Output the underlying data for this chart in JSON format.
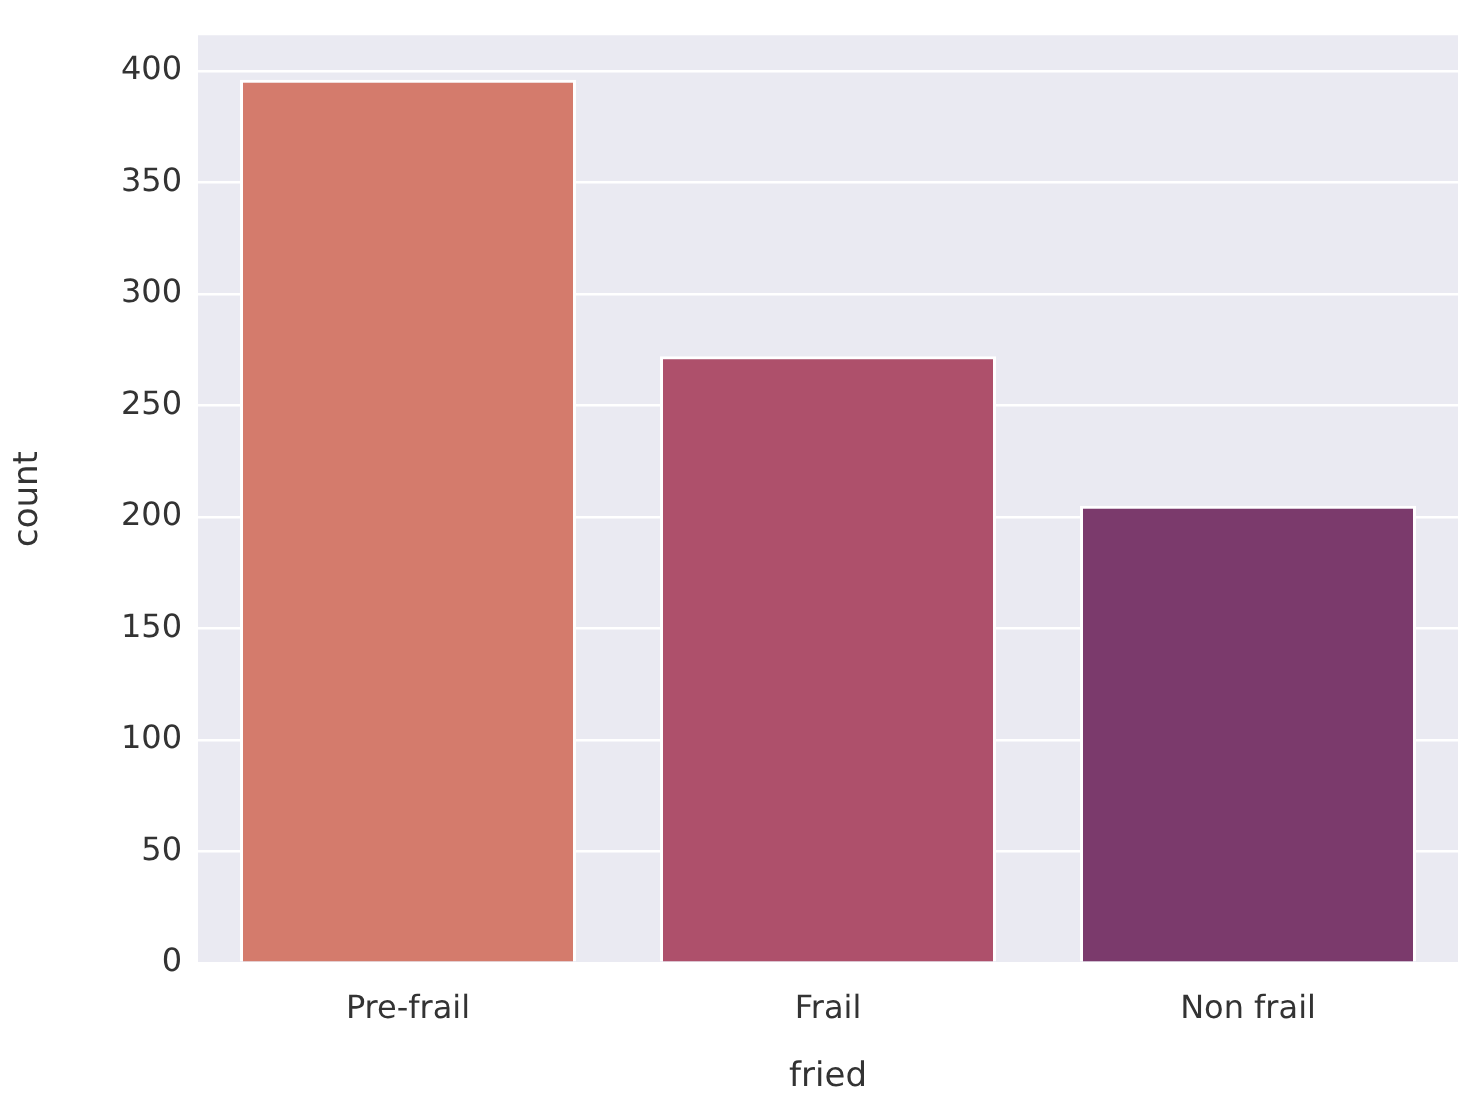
{
  "chart_data": {
    "type": "bar",
    "xlabel": "fried",
    "ylabel": "count",
    "categories": [
      "Pre-frail",
      "Frail",
      "Non frail"
    ],
    "values": [
      396,
      272,
      205
    ],
    "colors": [
      "#d47b6c",
      "#ae506b",
      "#7b3a6c"
    ],
    "ylim": [
      0,
      416
    ],
    "yticks": [
      0,
      50,
      100,
      150,
      200,
      250,
      300,
      350,
      400
    ],
    "grid": "y"
  }
}
